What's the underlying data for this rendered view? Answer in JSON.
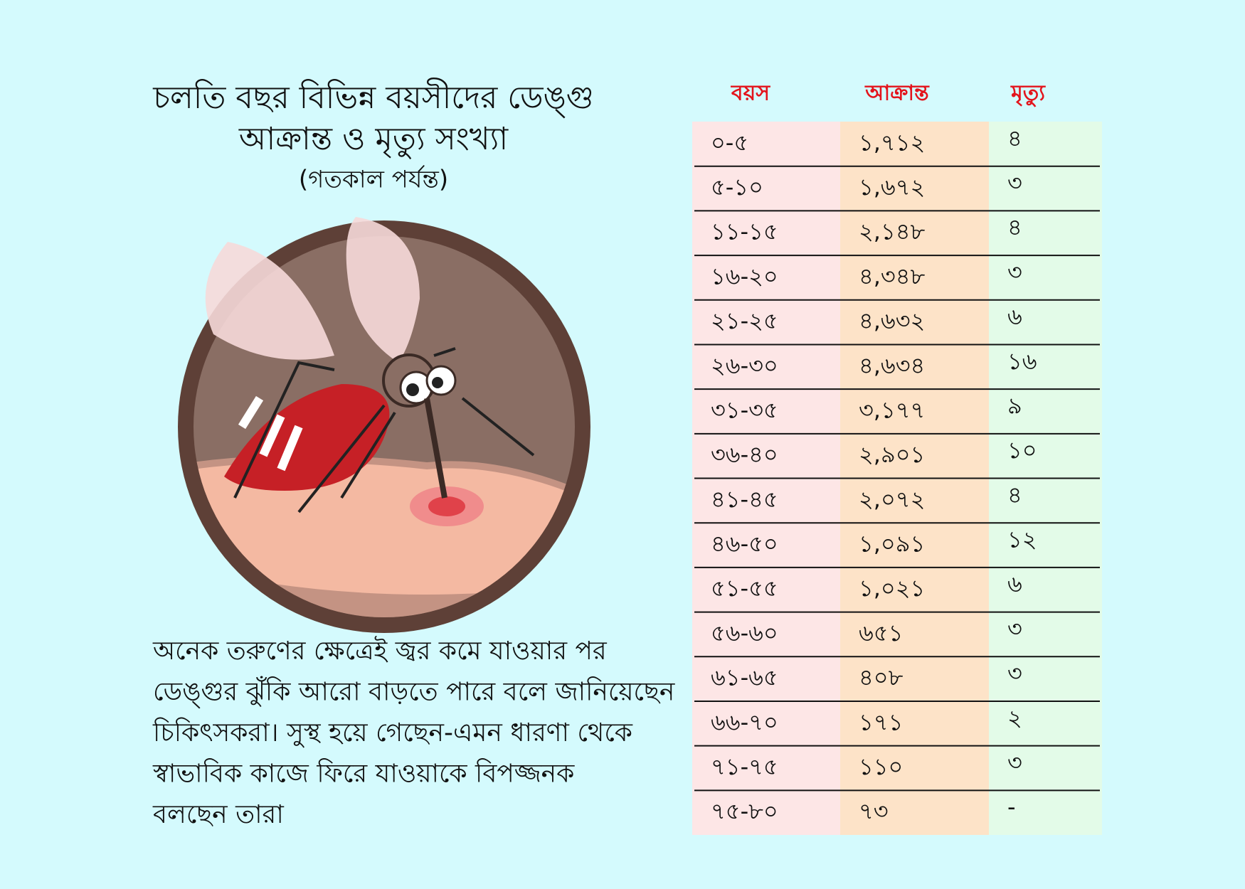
{
  "header": {
    "title_lines": [
      "চলতি বছর বিভিন্ন বয়সীদের ডেঙ্গু",
      "আক্রান্ত ও মৃত্যু সংখ্যা"
    ],
    "subtitle": "(গতকাল পর্যন্ত)"
  },
  "table": {
    "columns": [
      "বয়স",
      "আক্রান্ত",
      "মৃত্যু"
    ],
    "rows": [
      [
        "০-৫",
        "১,৭১২",
        "৪"
      ],
      [
        "৫-১০",
        "১,৬৭২",
        "৩"
      ],
      [
        "১১-১৫",
        "২,১৪৮",
        "৪"
      ],
      [
        "১৬-২০",
        "৪,৩৪৮",
        "৩"
      ],
      [
        "২১-২৫",
        "৪,৬৩২",
        "৬"
      ],
      [
        "২৬-৩০",
        "৪,৬৩৪",
        "১৬"
      ],
      [
        "৩১-৩৫",
        "৩,১৭৭",
        "৯"
      ],
      [
        "৩৬-৪০",
        "২,৯০১",
        "১০"
      ],
      [
        "৪১-৪৫",
        "২,০৭২",
        "৪"
      ],
      [
        "৪৬-৫০",
        "১,০৯১",
        "১২"
      ],
      [
        "৫১-৫৫",
        "১,০২১",
        "৬"
      ],
      [
        "৫৬-৬০",
        "৬৫১",
        "৩"
      ],
      [
        "৬১-৬৫",
        "৪০৮",
        "৩"
      ],
      [
        "৬৬-৭০",
        "১৭১",
        "২"
      ],
      [
        "৭১-৭৫",
        "১১০",
        "৩"
      ],
      [
        "৭৫-৮০",
        "৭৩",
        "-"
      ]
    ]
  },
  "note": {
    "lines": [
      "অনেক তরুণের ক্ষেত্রেই জ্বর কমে যাওয়ার পর",
      "ডেঙ্গুর ঝুঁকি আরো বাড়তে পারে বলে জানিয়েছেন",
      "চিকিৎসকরা। সুস্থ হয়ে গেছেন-এমন ধারণা থেকে",
      "স্বাভাবিক কাজে ফিরে যাওয়াকে বিপজ্জনক",
      "বলছেন তারা"
    ]
  }
}
